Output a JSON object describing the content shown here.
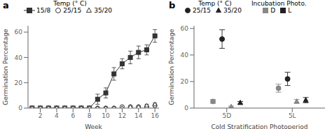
{
  "chart_data": [
    {
      "type": "line",
      "title": "a",
      "x": [
        1,
        2,
        3,
        4,
        5,
        6,
        7,
        8,
        9,
        10,
        11,
        12,
        13,
        14,
        15,
        16
      ],
      "xlim": [
        0.5,
        16.5
      ],
      "xticks": [
        2,
        4,
        6,
        8,
        10,
        12,
        14,
        16
      ],
      "ylim": [
        0,
        65
      ],
      "yticks": [
        0,
        20,
        40,
        60
      ],
      "x_label": "Week",
      "y_label": "Germination Percentage",
      "legend_title": "Temp (° C)",
      "series": [
        {
          "name": "15/8",
          "color": "#333333",
          "marker": "square",
          "line_style": "solid",
          "values": [
            0,
            0,
            0,
            0,
            0,
            0,
            0,
            0,
            7,
            12,
            27,
            35,
            40,
            44,
            46,
            57
          ],
          "err": [
            0,
            0,
            0,
            0,
            0,
            0,
            0,
            0,
            4,
            4,
            5,
            4,
            5,
            5,
            4,
            5
          ]
        },
        {
          "name": "25/15",
          "color": "#333333",
          "marker": "circle_open",
          "line_style": "none",
          "values": [
            0,
            0,
            0,
            0,
            0,
            0,
            0,
            0,
            0,
            0,
            0,
            1,
            1,
            1,
            1,
            2
          ],
          "err": [
            0,
            0,
            0,
            0,
            0,
            0,
            0,
            0,
            0,
            0,
            0,
            0.5,
            0.5,
            0.5,
            0.5,
            1
          ]
        },
        {
          "name": "35/20",
          "color": "#333333",
          "marker": "triangle_open",
          "line_style": "none",
          "values": [
            0,
            0,
            0,
            0,
            0,
            0,
            0,
            0,
            0,
            0,
            0,
            0,
            1,
            1,
            2,
            3
          ],
          "err": [
            0,
            0,
            0,
            0,
            0,
            0,
            0,
            0,
            0,
            0,
            0,
            0,
            0.5,
            0.5,
            1,
            1
          ]
        }
      ]
    },
    {
      "type": "scatter",
      "title": "b",
      "categories": [
        "5D",
        "5L"
      ],
      "ylim": [
        0,
        62
      ],
      "yticks": [
        0,
        20,
        40,
        60
      ],
      "x_label": "Cold Stratification Photoperiod",
      "y_label": "Germination Percentage",
      "series": [
        {
          "color": "#888888",
          "marker": "circle",
          "values": [
            5,
            15
          ],
          "err": [
            1.5,
            3
          ]
        },
        {
          "color": "#222222",
          "marker": "circle",
          "values": [
            52,
            22
          ],
          "err": [
            7,
            5
          ]
        },
        {
          "color": "#888888",
          "marker": "triangle",
          "values": [
            1,
            5
          ],
          "err": [
            0.5,
            1.5
          ]
        },
        {
          "color": "#222222",
          "marker": "triangle",
          "values": [
            4,
            6
          ],
          "err": [
            1,
            2
          ]
        }
      ],
      "legends": [
        {
          "title": "Temp (° C)",
          "entries": [
            {
              "name": "25/15",
              "marker": "circle",
              "color": "#222222"
            },
            {
              "name": "35/20",
              "marker": "triangle",
              "color": "#222222"
            }
          ]
        },
        {
          "title": "Incubation Photo.",
          "entries": [
            {
              "name": "D",
              "marker": "square",
              "color": "#888888"
            },
            {
              "name": "L",
              "marker": "square",
              "color": "#222222"
            }
          ]
        }
      ]
    }
  ]
}
